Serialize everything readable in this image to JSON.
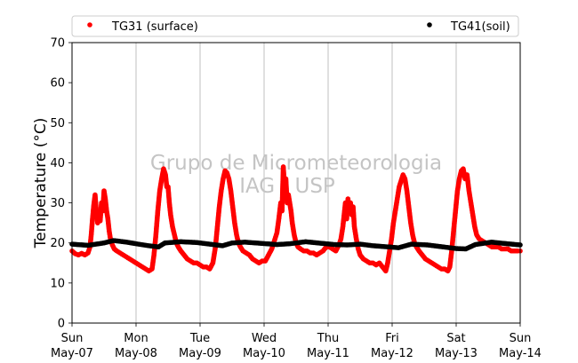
{
  "chart_data": {
    "type": "scatter",
    "title": "",
    "xlabel": "",
    "ylabel": "Temperature (°C)",
    "ylim": [
      0,
      70
    ],
    "yticks": [
      0,
      10,
      20,
      30,
      40,
      50,
      60,
      70
    ],
    "xlim": [
      "2017-05-07 00:00",
      "2017-05-14 00:00"
    ],
    "xticks": [
      {
        "day": "Sun",
        "date": "May-07"
      },
      {
        "day": "Mon",
        "date": "May-08"
      },
      {
        "day": "Tue",
        "date": "May-09"
      },
      {
        "day": "Wed",
        "date": "May-10"
      },
      {
        "day": "Thu",
        "date": "May-11"
      },
      {
        "day": "Fri",
        "date": "May-12"
      },
      {
        "day": "Sat",
        "date": "May-13"
      },
      {
        "day": "Sun",
        "date": "May-14"
      }
    ],
    "grid": "vertical",
    "legend_position": "top",
    "watermark": [
      "Grupo de Micrometeorologia",
      "IAG / USP"
    ],
    "series": [
      {
        "name": "TG31 (surface)",
        "color": "#ff0000",
        "points": [
          [
            0.0,
            18
          ],
          [
            0.05,
            17.3
          ],
          [
            0.1,
            17
          ],
          [
            0.15,
            17.4
          ],
          [
            0.2,
            17
          ],
          [
            0.25,
            17.5
          ],
          [
            0.28,
            19
          ],
          [
            0.3,
            22
          ],
          [
            0.32,
            26
          ],
          [
            0.34,
            29.5
          ],
          [
            0.36,
            32
          ],
          [
            0.38,
            28
          ],
          [
            0.4,
            25
          ],
          [
            0.42,
            27
          ],
          [
            0.44,
            25.5
          ],
          [
            0.46,
            30
          ],
          [
            0.48,
            28
          ],
          [
            0.5,
            33
          ],
          [
            0.52,
            31
          ],
          [
            0.54,
            28
          ],
          [
            0.56,
            26
          ],
          [
            0.58,
            23
          ],
          [
            0.6,
            21
          ],
          [
            0.63,
            19.5
          ],
          [
            0.66,
            18.5
          ],
          [
            0.7,
            18
          ],
          [
            0.75,
            17.5
          ],
          [
            0.8,
            17
          ],
          [
            0.85,
            16.5
          ],
          [
            0.9,
            16
          ],
          [
            0.95,
            15.5
          ],
          [
            1.0,
            15
          ],
          [
            1.05,
            14.5
          ],
          [
            1.1,
            14
          ],
          [
            1.15,
            13.5
          ],
          [
            1.2,
            13
          ],
          [
            1.25,
            13.5
          ],
          [
            1.28,
            17
          ],
          [
            1.31,
            22
          ],
          [
            1.34,
            28
          ],
          [
            1.37,
            33
          ],
          [
            1.4,
            36
          ],
          [
            1.43,
            38.5
          ],
          [
            1.46,
            37
          ],
          [
            1.48,
            34
          ],
          [
            1.5,
            34
          ],
          [
            1.52,
            30
          ],
          [
            1.54,
            27
          ],
          [
            1.57,
            24
          ],
          [
            1.6,
            22
          ],
          [
            1.63,
            20
          ],
          [
            1.66,
            19
          ],
          [
            1.7,
            18
          ],
          [
            1.75,
            17
          ],
          [
            1.8,
            16
          ],
          [
            1.85,
            15.5
          ],
          [
            1.9,
            15
          ],
          [
            1.95,
            15
          ],
          [
            2.0,
            14.5
          ],
          [
            2.05,
            14
          ],
          [
            2.1,
            14
          ],
          [
            2.15,
            13.5
          ],
          [
            2.2,
            15
          ],
          [
            2.24,
            19
          ],
          [
            2.27,
            24
          ],
          [
            2.3,
            29
          ],
          [
            2.33,
            33
          ],
          [
            2.36,
            36
          ],
          [
            2.39,
            38
          ],
          [
            2.42,
            37.5
          ],
          [
            2.45,
            36
          ],
          [
            2.48,
            33
          ],
          [
            2.51,
            29
          ],
          [
            2.54,
            25
          ],
          [
            2.57,
            22
          ],
          [
            2.6,
            20
          ],
          [
            2.63,
            19
          ],
          [
            2.67,
            18
          ],
          [
            2.72,
            17.5
          ],
          [
            2.77,
            17
          ],
          [
            2.82,
            16
          ],
          [
            2.87,
            15.5
          ],
          [
            2.92,
            15
          ],
          [
            2.97,
            15.5
          ],
          [
            3.02,
            15.5
          ],
          [
            3.07,
            17
          ],
          [
            3.12,
            18.5
          ],
          [
            3.17,
            21
          ],
          [
            3.2,
            22.5
          ],
          [
            3.23,
            26
          ],
          [
            3.26,
            30
          ],
          [
            3.28,
            28
          ],
          [
            3.3,
            39
          ],
          [
            3.32,
            34
          ],
          [
            3.34,
            36
          ],
          [
            3.36,
            30
          ],
          [
            3.38,
            32
          ],
          [
            3.4,
            30
          ],
          [
            3.42,
            28
          ],
          [
            3.44,
            25
          ],
          [
            3.47,
            22
          ],
          [
            3.5,
            20
          ],
          [
            3.53,
            19
          ],
          [
            3.57,
            18.5
          ],
          [
            3.62,
            18
          ],
          [
            3.67,
            18
          ],
          [
            3.72,
            17.5
          ],
          [
            3.77,
            17.5
          ],
          [
            3.82,
            17
          ],
          [
            3.87,
            17.5
          ],
          [
            3.92,
            18
          ],
          [
            3.97,
            19
          ],
          [
            4.02,
            19
          ],
          [
            4.07,
            18.5
          ],
          [
            4.12,
            18
          ],
          [
            4.17,
            19.5
          ],
          [
            4.2,
            21
          ],
          [
            4.23,
            24
          ],
          [
            4.25,
            27
          ],
          [
            4.27,
            30
          ],
          [
            4.29,
            26
          ],
          [
            4.31,
            31
          ],
          [
            4.33,
            28
          ],
          [
            4.35,
            30
          ],
          [
            4.37,
            27
          ],
          [
            4.39,
            29
          ],
          [
            4.41,
            24
          ],
          [
            4.44,
            21
          ],
          [
            4.47,
            18.5
          ],
          [
            4.5,
            17
          ],
          [
            4.55,
            16
          ],
          [
            4.6,
            15.5
          ],
          [
            4.65,
            15
          ],
          [
            4.7,
            15
          ],
          [
            4.75,
            14.5
          ],
          [
            4.8,
            15
          ],
          [
            4.85,
            14
          ],
          [
            4.9,
            13
          ],
          [
            4.93,
            15
          ],
          [
            4.96,
            18
          ],
          [
            4.99,
            21
          ],
          [
            5.02,
            25
          ],
          [
            5.05,
            28
          ],
          [
            5.08,
            31
          ],
          [
            5.11,
            34
          ],
          [
            5.14,
            35.5
          ],
          [
            5.17,
            37
          ],
          [
            5.2,
            36
          ],
          [
            5.23,
            33
          ],
          [
            5.26,
            29
          ],
          [
            5.29,
            25
          ],
          [
            5.32,
            22
          ],
          [
            5.35,
            20
          ],
          [
            5.38,
            19
          ],
          [
            5.42,
            18
          ],
          [
            5.47,
            17
          ],
          [
            5.52,
            16
          ],
          [
            5.57,
            15.5
          ],
          [
            5.62,
            15
          ],
          [
            5.67,
            14.5
          ],
          [
            5.72,
            14
          ],
          [
            5.77,
            13.5
          ],
          [
            5.82,
            13.5
          ],
          [
            5.87,
            13
          ],
          [
            5.9,
            14
          ],
          [
            5.93,
            18
          ],
          [
            5.96,
            23
          ],
          [
            5.99,
            28
          ],
          [
            6.02,
            33
          ],
          [
            6.05,
            36
          ],
          [
            6.08,
            38
          ],
          [
            6.11,
            38.5
          ],
          [
            6.14,
            36
          ],
          [
            6.17,
            37
          ],
          [
            6.2,
            33
          ],
          [
            6.23,
            30
          ],
          [
            6.26,
            27
          ],
          [
            6.29,
            24
          ],
          [
            6.32,
            22
          ],
          [
            6.36,
            21
          ],
          [
            6.41,
            20.5
          ],
          [
            6.46,
            20
          ],
          [
            6.51,
            19.5
          ],
          [
            6.56,
            19
          ],
          [
            6.61,
            19
          ],
          [
            6.66,
            19
          ],
          [
            6.71,
            18.5
          ],
          [
            6.76,
            18.5
          ],
          [
            6.81,
            18.5
          ],
          [
            6.86,
            18
          ],
          [
            6.91,
            18
          ],
          [
            6.96,
            18
          ],
          [
            7.0,
            18
          ]
        ]
      },
      {
        "name": "TG41(soil)",
        "color": "#000000",
        "points": [
          [
            0.0,
            19.7
          ],
          [
            0.25,
            19.4
          ],
          [
            0.5,
            20.0
          ],
          [
            0.65,
            20.6
          ],
          [
            0.85,
            20.2
          ],
          [
            1.0,
            19.8
          ],
          [
            1.2,
            19.3
          ],
          [
            1.35,
            19.0
          ],
          [
            1.45,
            20.0
          ],
          [
            1.7,
            20.3
          ],
          [
            1.95,
            20.1
          ],
          [
            2.2,
            19.6
          ],
          [
            2.35,
            19.3
          ],
          [
            2.5,
            20.0
          ],
          [
            2.7,
            20.2
          ],
          [
            2.95,
            19.9
          ],
          [
            3.2,
            19.6
          ],
          [
            3.4,
            19.8
          ],
          [
            3.65,
            20.3
          ],
          [
            3.9,
            19.9
          ],
          [
            4.1,
            19.6
          ],
          [
            4.3,
            19.5
          ],
          [
            4.5,
            19.7
          ],
          [
            4.7,
            19.3
          ],
          [
            4.95,
            19.0
          ],
          [
            5.1,
            18.8
          ],
          [
            5.3,
            19.7
          ],
          [
            5.55,
            19.5
          ],
          [
            5.8,
            19.0
          ],
          [
            6.0,
            18.6
          ],
          [
            6.15,
            18.5
          ],
          [
            6.3,
            19.6
          ],
          [
            6.55,
            20.2
          ],
          [
            6.8,
            19.8
          ],
          [
            7.0,
            19.5
          ]
        ]
      }
    ]
  }
}
